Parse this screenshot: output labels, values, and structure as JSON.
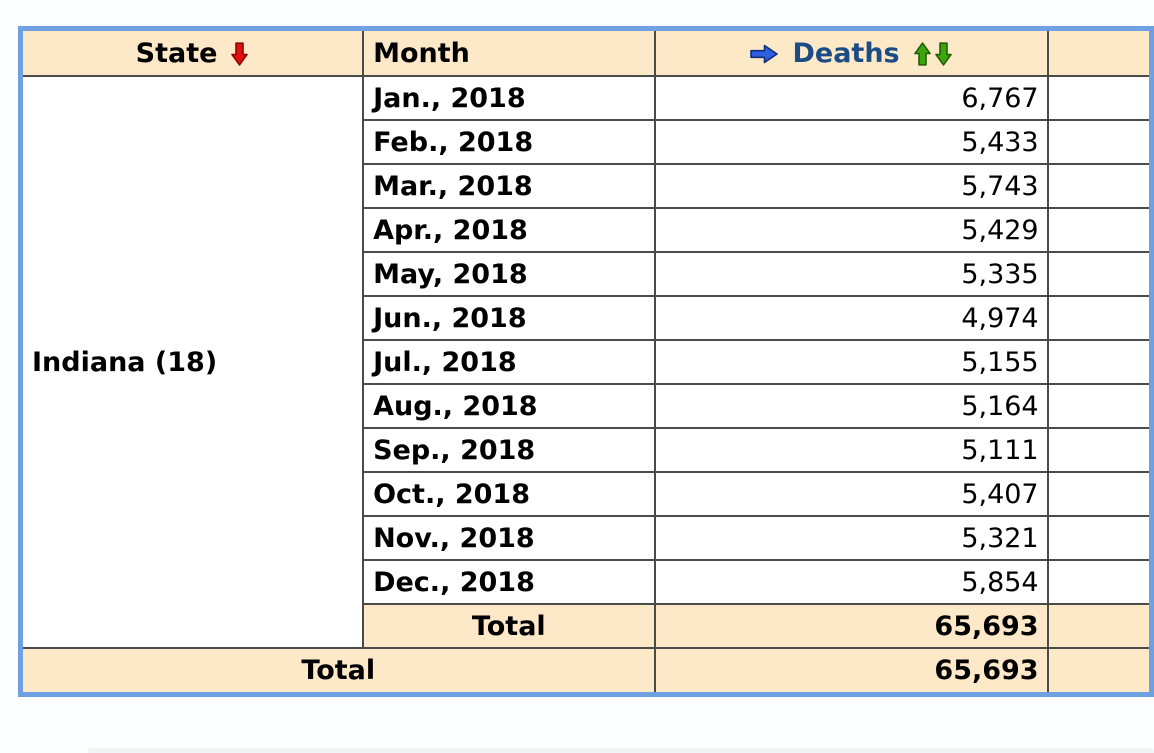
{
  "page": {
    "background_color": "#FDFEFF"
  },
  "colors": {
    "table_border": "#6FA0E1",
    "grid_line": "#4A4A4A",
    "band_background": "#FDE8C8",
    "deaths_header_text": "#1B4C85",
    "red_arrow": "#E01010",
    "blue_arrow": "#2E5FE0",
    "green_arrow": "#3DA50E"
  },
  "table": {
    "header": {
      "state": "State",
      "month": "Month",
      "deaths": "Deaths"
    },
    "icons": {
      "state_sort": "red-down-arrow",
      "deaths_prefix": "blue-right-arrow",
      "deaths_sort_ascending": "green-up-arrow",
      "deaths_sort_descending": "green-down-arrow"
    },
    "group": {
      "state": "Indiana (18)",
      "rows": [
        {
          "month": "Jan., 2018",
          "deaths": "6,767"
        },
        {
          "month": "Feb., 2018",
          "deaths": "5,433"
        },
        {
          "month": "Mar., 2018",
          "deaths": "5,743"
        },
        {
          "month": "Apr., 2018",
          "deaths": "5,429"
        },
        {
          "month": "May, 2018",
          "deaths": "5,335"
        },
        {
          "month": "Jun., 2018",
          "deaths": "4,974"
        },
        {
          "month": "Jul., 2018",
          "deaths": "5,155"
        },
        {
          "month": "Aug., 2018",
          "deaths": "5,164"
        },
        {
          "month": "Sep., 2018",
          "deaths": "5,111"
        },
        {
          "month": "Oct., 2018",
          "deaths": "5,407"
        },
        {
          "month": "Nov., 2018",
          "deaths": "5,321"
        },
        {
          "month": "Dec., 2018",
          "deaths": "5,854"
        }
      ],
      "total_label": "Total",
      "total_deaths": "65,693"
    },
    "grand_total": {
      "label": "Total",
      "deaths": "65,693"
    }
  }
}
